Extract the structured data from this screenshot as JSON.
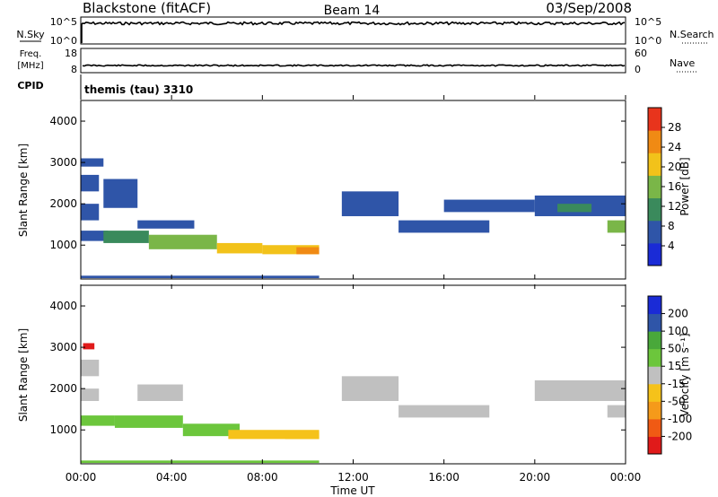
{
  "header": {
    "station": "Blackstone (fitACF)",
    "beam": "Beam 14",
    "date": "03/Sep/2008"
  },
  "summary_panels": {
    "nsky": {
      "label": "N.Sky",
      "ticks": [
        "10^5",
        "10^0"
      ],
      "right_ticks": [
        "10^5",
        "10^0"
      ],
      "right_label": "N.Search"
    },
    "freq": {
      "label_line1": "Freq.",
      "label_line2": "[MHz]",
      "ticks": [
        "18",
        "8"
      ],
      "right_ticks": [
        "60",
        "0"
      ],
      "right_label": "Nave"
    },
    "cpid": {
      "label": "CPID",
      "text": "themis (tau) 3310"
    }
  },
  "axes": {
    "ylabel": "Slant Range [km]",
    "yticks": [
      1000,
      2000,
      3000,
      4000
    ],
    "xlabel": "Time UT",
    "xticks": [
      "00:00",
      "04:00",
      "08:00",
      "12:00",
      "16:00",
      "20:00",
      "00:00"
    ]
  },
  "colorbars": {
    "power": {
      "label": "Power [dB]",
      "ticks": [
        "28",
        "24",
        "20",
        "16",
        "12",
        "8",
        "4"
      ]
    },
    "velocity": {
      "label": "Velocity [m s⁻¹]",
      "ticks": [
        "200",
        "100",
        "50",
        "15",
        "-15",
        "-50",
        "-100",
        "-200"
      ]
    }
  },
  "chart_data": [
    {
      "type": "heatmap",
      "name": "power",
      "x": "Time UT (hours)",
      "xlim": [
        0,
        24
      ],
      "y": "Slant Range [km]",
      "ylim": [
        180,
        4500
      ],
      "color_scale": {
        "min": 0,
        "max": 30,
        "unit": "dB",
        "colors": [
          "#1a2bd6",
          "#2f55a8",
          "#3a8a5c",
          "#7ab648",
          "#f2c21a",
          "#f08a14",
          "#e8341c"
        ]
      },
      "cells": [
        {
          "t0": 0.0,
          "t1": 0.8,
          "r0": 1600,
          "r1": 2000,
          "value": 8
        },
        {
          "t0": 0.0,
          "t1": 0.8,
          "r0": 2300,
          "r1": 2700,
          "value": 6
        },
        {
          "t0": 0.0,
          "t1": 1.0,
          "r0": 2900,
          "r1": 3100,
          "value": 6
        },
        {
          "t0": 0.0,
          "t1": 1.2,
          "r0": 1100,
          "r1": 1350,
          "value": 8
        },
        {
          "t0": 1.0,
          "t1": 3.0,
          "r0": 1050,
          "r1": 1350,
          "value": 10
        },
        {
          "t0": 3.0,
          "t1": 6.0,
          "r0": 900,
          "r1": 1250,
          "value": 16
        },
        {
          "t0": 6.0,
          "t1": 8.0,
          "r0": 800,
          "r1": 1050,
          "value": 18
        },
        {
          "t0": 8.0,
          "t1": 10.5,
          "r0": 780,
          "r1": 1000,
          "value": 20
        },
        {
          "t0": 9.5,
          "t1": 10.5,
          "r0": 780,
          "r1": 950,
          "value": 24
        },
        {
          "t0": 2.5,
          "t1": 5.0,
          "r0": 1400,
          "r1": 1600,
          "value": 6
        },
        {
          "t0": 1.0,
          "t1": 2.5,
          "r0": 1900,
          "r1": 2600,
          "value": 8
        },
        {
          "t0": 0.0,
          "t1": 10.5,
          "r0": 200,
          "r1": 260,
          "value": 6
        },
        {
          "t0": 11.5,
          "t1": 14.0,
          "r0": 1700,
          "r1": 2300,
          "value": 5
        },
        {
          "t0": 14.0,
          "t1": 18.0,
          "r0": 1300,
          "r1": 1600,
          "value": 6
        },
        {
          "t0": 16.0,
          "t1": 20.0,
          "r0": 1800,
          "r1": 2100,
          "value": 5
        },
        {
          "t0": 20.0,
          "t1": 24.0,
          "r0": 1700,
          "r1": 2200,
          "value": 8
        },
        {
          "t0": 21.0,
          "t1": 22.5,
          "r0": 1800,
          "r1": 2000,
          "value": 12
        },
        {
          "t0": 23.2,
          "t1": 24.0,
          "r0": 1300,
          "r1": 1600,
          "value": 14
        }
      ]
    },
    {
      "type": "heatmap",
      "name": "velocity",
      "x": "Time UT (hours)",
      "xlim": [
        0,
        24
      ],
      "y": "Slant Range [km]",
      "ylim": [
        180,
        4500
      ],
      "color_scale": {
        "min": -200,
        "max": 200,
        "unit": "m s-1",
        "colors": [
          "#e01a1a",
          "#f05a14",
          "#f59a1a",
          "#f5c21a",
          "#c0c0c0",
          "#6cc63c",
          "#49a83a",
          "#2f55a8",
          "#1a2bd6"
        ]
      },
      "cells": [
        {
          "t0": 0.0,
          "t1": 0.8,
          "r0": 1700,
          "r1": 2000,
          "value": 0
        },
        {
          "t0": 0.0,
          "t1": 0.8,
          "r0": 2300,
          "r1": 2700,
          "value": -10
        },
        {
          "t0": 0.1,
          "t1": 0.6,
          "r0": 2950,
          "r1": 3100,
          "value": -200
        },
        {
          "t0": 0.0,
          "t1": 1.5,
          "r0": 1100,
          "r1": 1350,
          "value": 40
        },
        {
          "t0": 1.5,
          "t1": 4.5,
          "r0": 1050,
          "r1": 1350,
          "value": 40
        },
        {
          "t0": 4.5,
          "t1": 7.0,
          "r0": 850,
          "r1": 1150,
          "value": 35
        },
        {
          "t0": 6.5,
          "t1": 10.5,
          "r0": 780,
          "r1": 1000,
          "value": -40
        },
        {
          "t0": 9.0,
          "t1": 10.5,
          "r0": 780,
          "r1": 950,
          "value": -60
        },
        {
          "t0": 2.5,
          "t1": 4.5,
          "r0": 1700,
          "r1": 2100,
          "value": 0
        },
        {
          "t0": 0.0,
          "t1": 10.5,
          "r0": 200,
          "r1": 260,
          "value": 30
        },
        {
          "t0": 11.5,
          "t1": 14.0,
          "r0": 1700,
          "r1": 2300,
          "value": 0
        },
        {
          "t0": 14.0,
          "t1": 18.0,
          "r0": 1300,
          "r1": 1600,
          "value": 0
        },
        {
          "t0": 20.0,
          "t1": 24.0,
          "r0": 1700,
          "r1": 2200,
          "value": 0
        },
        {
          "t0": 23.2,
          "t1": 24.0,
          "r0": 1300,
          "r1": 1600,
          "value": -20
        }
      ]
    }
  ]
}
